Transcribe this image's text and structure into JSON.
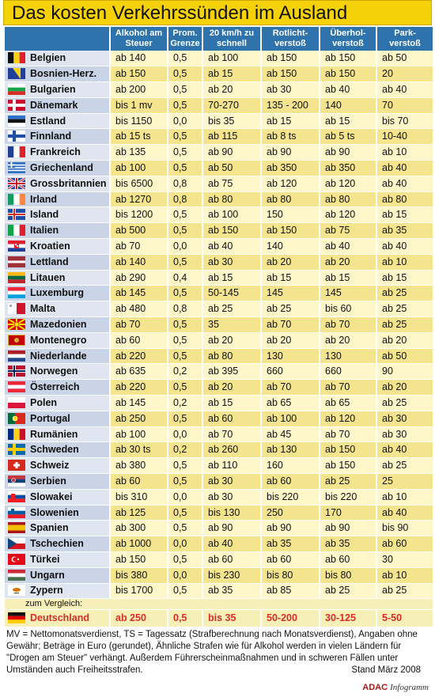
{
  "title": "Das kosten Verkehrssünden im Ausland",
  "headers": [
    "Alkohol am Steuer",
    "Prom. Grenze",
    "20 km/h zu schnell",
    "Rotlicht-verstoß",
    "Überhol-verstoß",
    "Park-verstoß"
  ],
  "rows": [
    {
      "country": "Belgien",
      "flag": "belgium",
      "values": [
        "ab 140",
        "0,5",
        "ab 100",
        "ab 150",
        "ab 150",
        "ab 50"
      ]
    },
    {
      "country": "Bosnien-Herz.",
      "flag": "bosnia",
      "values": [
        "ab 150",
        "0,5",
        "ab 15",
        "ab 150",
        "ab 150",
        "20"
      ]
    },
    {
      "country": "Bulgarien",
      "flag": "bulgaria",
      "values": [
        "ab 200",
        "0,5",
        "ab 20",
        "ab 30",
        "ab 40",
        "ab 40"
      ]
    },
    {
      "country": "Dänemark",
      "flag": "denmark",
      "values": [
        "bis 1 mv",
        "0,5",
        "70-270",
        "135 - 200",
        "140",
        "70"
      ]
    },
    {
      "country": "Estland",
      "flag": "estonia",
      "values": [
        "bis 1150",
        "0,0",
        "bis 35",
        "ab 15",
        "ab 15",
        "bis 70"
      ]
    },
    {
      "country": "Finnland",
      "flag": "finland",
      "values": [
        "ab 15 ts",
        "0,5",
        "ab 115",
        "ab 8 ts",
        "ab 5 ts",
        "10-40"
      ]
    },
    {
      "country": "Frankreich",
      "flag": "france",
      "values": [
        "ab 135",
        "0,5",
        "ab 90",
        "ab 90",
        "ab 90",
        "ab 10"
      ]
    },
    {
      "country": "Griechenland",
      "flag": "greece",
      "values": [
        "ab 100",
        "0,5",
        "ab 50",
        "ab 350",
        "ab 350",
        "ab 40"
      ]
    },
    {
      "country": "Grossbritannien",
      "flag": "uk",
      "values": [
        "bis 6500",
        "0,8",
        "ab 75",
        "ab 120",
        "ab 120",
        "ab 40"
      ]
    },
    {
      "country": "Irland",
      "flag": "ireland",
      "values": [
        "ab 1270",
        "0,8",
        "ab 80",
        "ab 80",
        "ab 80",
        "ab 80"
      ]
    },
    {
      "country": "Island",
      "flag": "iceland",
      "values": [
        "bis 1200",
        "0,5",
        "ab 100",
        "150",
        "ab 120",
        "ab 15"
      ]
    },
    {
      "country": "Italien",
      "flag": "italy",
      "values": [
        "ab 500",
        "0,5",
        "ab 150",
        "ab 150",
        "ab 75",
        "ab 35"
      ]
    },
    {
      "country": "Kroatien",
      "flag": "croatia",
      "values": [
        "ab 70",
        "0,0",
        "ab 40",
        "140",
        "ab 40",
        "ab 40"
      ]
    },
    {
      "country": "Lettland",
      "flag": "latvia",
      "values": [
        "ab 140",
        "0,5",
        "ab 30",
        "ab 20",
        "ab 20",
        "ab 10"
      ]
    },
    {
      "country": "Litauen",
      "flag": "lithuania",
      "values": [
        "ab 290",
        "0,4",
        "ab 15",
        "ab 15",
        "ab 15",
        "ab 15"
      ]
    },
    {
      "country": "Luxemburg",
      "flag": "luxembourg",
      "values": [
        "ab 145",
        "0,5",
        "50-145",
        "145",
        "145",
        "ab 25"
      ]
    },
    {
      "country": "Malta",
      "flag": "malta",
      "values": [
        "ab 480",
        "0,8",
        "ab 25",
        "ab 25",
        "bis 60",
        "ab 25"
      ]
    },
    {
      "country": "Mazedonien",
      "flag": "macedonia",
      "values": [
        "ab 70",
        "0,5",
        "35",
        "ab 70",
        "ab 70",
        "ab 25"
      ]
    },
    {
      "country": "Montenegro",
      "flag": "montenegro",
      "values": [
        "ab 60",
        "0,5",
        "ab 20",
        "ab 20",
        "ab 20",
        "ab 20"
      ]
    },
    {
      "country": "Niederlande",
      "flag": "netherlands",
      "values": [
        "ab 220",
        "0,5",
        "ab 80",
        "130",
        "130",
        "ab 50"
      ]
    },
    {
      "country": "Norwegen",
      "flag": "norway",
      "values": [
        "ab 635",
        "0,2",
        "ab 395",
        "660",
        "660",
        "90"
      ]
    },
    {
      "country": "Österreich",
      "flag": "austria",
      "values": [
        "ab 220",
        "0,5",
        "ab 20",
        "ab 70",
        "ab 70",
        "ab 20"
      ]
    },
    {
      "country": "Polen",
      "flag": "poland",
      "values": [
        "ab 145",
        "0,2",
        "ab 15",
        "ab 65",
        "ab 65",
        "ab 25"
      ]
    },
    {
      "country": "Portugal",
      "flag": "portugal",
      "values": [
        "ab 250",
        "0,5",
        "ab 60",
        "ab 100",
        "ab 120",
        "ab 30"
      ]
    },
    {
      "country": "Rumänien",
      "flag": "romania",
      "values": [
        "ab 100",
        "0,0",
        "ab 70",
        "ab 45",
        "ab 70",
        "ab 30"
      ]
    },
    {
      "country": "Schweden",
      "flag": "sweden",
      "values": [
        "ab 30 ts",
        "0,2",
        "ab 260",
        "ab 130",
        "ab 150",
        "ab 40"
      ]
    },
    {
      "country": "Schweiz",
      "flag": "switzerland",
      "values": [
        "ab 380",
        "0,5",
        "ab 110",
        "160",
        "ab 150",
        "ab 25"
      ]
    },
    {
      "country": "Serbien",
      "flag": "serbia",
      "values": [
        "ab 60",
        "0,5",
        "ab 30",
        "ab 60",
        "ab 25",
        "25"
      ]
    },
    {
      "country": "Slowakei",
      "flag": "slovakia",
      "values": [
        "bis 310",
        "0,0",
        "ab 30",
        "bis 220",
        "bis 220",
        "ab 10"
      ]
    },
    {
      "country": "Slowenien",
      "flag": "slovenia",
      "values": [
        "ab 125",
        "0,5",
        "bis 130",
        "250",
        "170",
        "ab 40"
      ]
    },
    {
      "country": "Spanien",
      "flag": "spain",
      "values": [
        "ab 300",
        "0,5",
        "ab 90",
        "ab 90",
        "ab 90",
        "bis 90"
      ]
    },
    {
      "country": "Tschechien",
      "flag": "czech",
      "values": [
        "ab 1000",
        "0,0",
        "ab 40",
        "ab 35",
        "ab 35",
        "ab 60"
      ]
    },
    {
      "country": "Türkei",
      "flag": "turkey",
      "values": [
        "ab 150",
        "0,5",
        "ab 60",
        "ab 60",
        "ab 60",
        "30"
      ]
    },
    {
      "country": "Ungarn",
      "flag": "hungary",
      "values": [
        "bis 380",
        "0,0",
        "bis 230",
        "bis 80",
        "bis 80",
        "ab 10"
      ]
    },
    {
      "country": "Zypern",
      "flag": "cyprus",
      "values": [
        "bis 1700",
        "0,5",
        "ab 35",
        "ab 85",
        "ab 25",
        "ab 25"
      ]
    }
  ],
  "compare_label": "zum Vergleich:",
  "germany": {
    "country": "Deutschland",
    "flag": "germany",
    "values": [
      "ab 250",
      "0,5",
      "bis 35",
      "50-200",
      "30-125",
      "5-50"
    ]
  },
  "footnote": "MV = Nettomonatsverdienst, TS = Tagessatz (Strafberechnung nach Monatsverdienst), Angaben ohne Gewähr; Beträge in Euro (gerundet), Ähnliche Strafen wie für Alkohol werden in vielen Ländern für \"Drogen am Steuer\" verhängt. Außerdem Führerscheinmaßnahmen und in schweren Fällen unter Umständen auch Freiheitsstrafen.",
  "stand": "Stand März 2008",
  "credit_brand": "ADAC",
  "credit_label": "Infogramm",
  "colors": {
    "title_bg": "#f5d10a",
    "header_bg": "#2f73ad",
    "row_light": "#fdf6c8",
    "row_dark": "#f3e48d",
    "germany_text": "#d62e26"
  }
}
